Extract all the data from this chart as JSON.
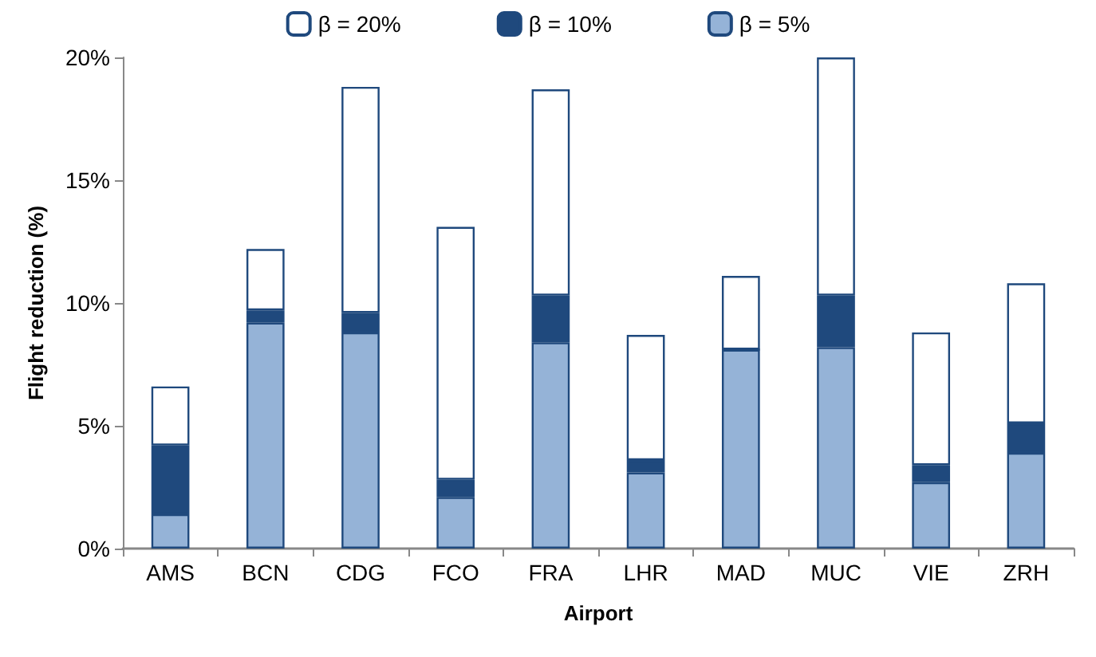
{
  "chart_data": {
    "type": "bar",
    "xlabel": "Airport",
    "ylabel": "Flight reduction (%)",
    "categories": [
      "AMS",
      "BCN",
      "CDG",
      "FCO",
      "FRA",
      "LHR",
      "MAD",
      "MUC",
      "VIE",
      "ZRH"
    ],
    "stacked": true,
    "series": [
      {
        "name": "β = 5%",
        "color": "#95b3d7",
        "values": [
          1.4,
          9.2,
          8.8,
          2.1,
          8.4,
          3.1,
          8.1,
          8.2,
          2.7,
          3.9
        ]
      },
      {
        "name": "β = 10%",
        "color": "#1f497d",
        "values": [
          2.8,
          0.5,
          0.8,
          0.7,
          1.9,
          0.5,
          0,
          2.1,
          0.7,
          1.2
        ]
      },
      {
        "name": "β = 20%",
        "color": "#ffffff",
        "values": [
          2.4,
          2.5,
          9.2,
          10.3,
          8.4,
          5.1,
          3.0,
          9.7,
          5.4,
          5.7
        ]
      }
    ],
    "ylim": [
      0,
      20
    ],
    "yticks": [
      {
        "value": 0,
        "label": "0%"
      },
      {
        "value": 5,
        "label": "5%"
      },
      {
        "value": 10,
        "label": "10%"
      },
      {
        "value": 15,
        "label": "15%"
      },
      {
        "value": 20,
        "label": "20%"
      }
    ],
    "grid": false,
    "legend": "top"
  }
}
